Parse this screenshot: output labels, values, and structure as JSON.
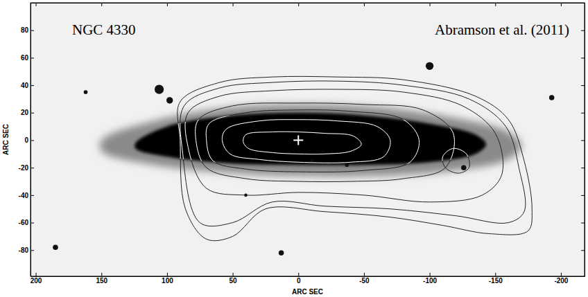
{
  "chart_data": {
    "type": "contour",
    "xlabel": "ARC SEC",
    "ylabel": "ARC SEC",
    "xlim": [
      204,
      -218
    ],
    "ylim": [
      -99,
      100
    ],
    "xticks": [
      200,
      150,
      100,
      50,
      0,
      -50,
      -100,
      -150,
      -200
    ],
    "yticks": [
      -80,
      -60,
      -40,
      -20,
      0,
      20,
      40,
      60,
      80
    ],
    "color": "#222222",
    "annotations": [
      {
        "text": "NGC 4330"
      },
      {
        "text": "Abramson et al. (2011)"
      }
    ],
    "galaxy": [
      {
        "color": "#000000",
        "x": [
          124,
          100,
          50,
          0,
          -50,
          -100,
          -135,
          -143,
          -135,
          -100,
          -50,
          0,
          50,
          100,
          124
        ],
        "y": [
          -2,
          10,
          18,
          20,
          18,
          12,
          4,
          -3,
          -10,
          -16,
          -18,
          -18,
          -17,
          -12,
          -6
        ]
      },
      {
        "color": "#8a8a8a",
        "x": [
          150,
          110,
          50,
          0,
          -60,
          -120,
          -160,
          -170,
          -160,
          -120,
          -60,
          0,
          50,
          110,
          150
        ],
        "y": [
          0,
          14,
          24,
          26,
          24,
          16,
          6,
          -4,
          -14,
          -22,
          -26,
          -26,
          -24,
          -18,
          -8
        ]
      }
    ],
    "stars": {
      "x": [
        106,
        98,
        162,
        -100,
        13,
        185,
        -193,
        -37,
        -126,
        40,
        -10
      ],
      "y": [
        37,
        29,
        35,
        54,
        -82,
        -78,
        31,
        -18,
        -20,
        -40,
        -15
      ],
      "size": [
        3.5,
        2.5,
        1.5,
        3,
        2,
        2,
        2,
        1.5,
        2,
        1.2,
        1.2
      ]
    },
    "center": {
      "x": 0,
      "y": 0,
      "marker": "cross"
    },
    "contours": [
      {
        "x": [
          40,
          20,
          0,
          -20,
          -42,
          -48,
          -40,
          -20,
          0,
          20,
          38,
          42
        ],
        "y": [
          4,
          6,
          6,
          5,
          3,
          -3,
          -8,
          -10,
          -10,
          -9,
          -6,
          -1
        ]
      },
      {
        "x": [
          55,
          30,
          0,
          -30,
          -60,
          -70,
          -65,
          -40,
          0,
          30,
          52,
          58
        ],
        "y": [
          8,
          14,
          15,
          14,
          10,
          0,
          -12,
          -16,
          -16,
          -14,
          -10,
          0
        ]
      },
      {
        "x": [
          68,
          40,
          0,
          -40,
          -80,
          -92,
          -85,
          -50,
          0,
          40,
          65,
          70
        ],
        "y": [
          12,
          20,
          22,
          21,
          15,
          0,
          -16,
          -22,
          -23,
          -21,
          -15,
          0
        ]
      },
      {
        "x": [
          76,
          50,
          0,
          -50,
          -95,
          -118,
          -112,
          -80,
          -40,
          0,
          40,
          70,
          78
        ],
        "y": [
          15,
          25,
          27,
          26,
          22,
          5,
          -20,
          -28,
          -30,
          -30,
          -28,
          -20,
          0
        ]
      },
      {
        "x": [
          84,
          60,
          20,
          -30,
          -80,
          -125,
          -150,
          -155,
          -140,
          -100,
          -50,
          0,
          40,
          70,
          84
        ],
        "y": [
          20,
          32,
          36,
          37,
          35,
          25,
          5,
          -25,
          -40,
          -45,
          -40,
          -38,
          -40,
          -35,
          -5
        ]
      },
      {
        "x": [
          87,
          60,
          20,
          -30,
          -80,
          -130,
          -158,
          -168,
          -172,
          -160,
          -120,
          -70,
          -20,
          20,
          50,
          75,
          88
        ],
        "y": [
          25,
          38,
          42,
          43,
          40,
          30,
          10,
          -20,
          -52,
          -60,
          -55,
          -50,
          -48,
          -45,
          -60,
          -60,
          -10
        ]
      },
      {
        "x": [
          90,
          60,
          20,
          -30,
          -80,
          -135,
          -160,
          -172,
          -178,
          -175,
          -145,
          -110,
          -70,
          -20,
          25,
          50,
          70,
          86,
          90
        ],
        "y": [
          28,
          42,
          46,
          46,
          44,
          32,
          15,
          -15,
          -50,
          -66,
          -68,
          -62,
          -56,
          -52,
          -50,
          -70,
          -72,
          -50,
          0
        ]
      },
      {
        "x": [
          -110,
          -118,
          -128,
          -130,
          -122,
          -112
        ],
        "y": [
          -12,
          -6,
          -10,
          -20,
          -24,
          -20
        ]
      }
    ]
  }
}
